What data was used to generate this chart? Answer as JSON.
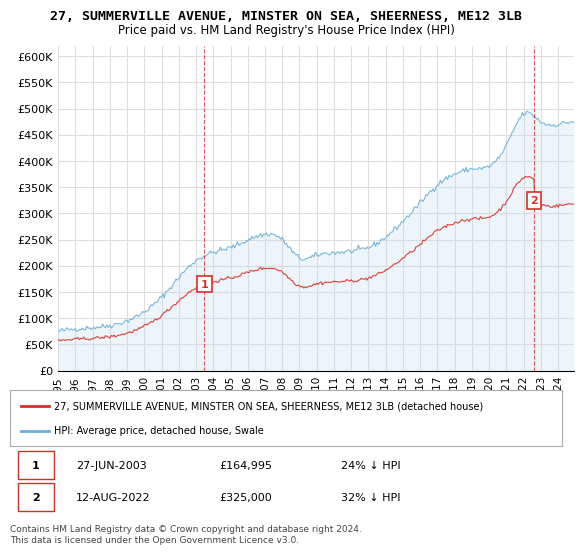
{
  "title_line1": "27, SUMMERVILLE AVENUE, MINSTER ON SEA, SHEERNESS, ME12 3LB",
  "title_line2": "Price paid vs. HM Land Registry's House Price Index (HPI)",
  "xlabel": "",
  "ylabel": "",
  "ylim": [
    0,
    620000
  ],
  "yticks": [
    0,
    50000,
    100000,
    150000,
    200000,
    250000,
    300000,
    350000,
    400000,
    450000,
    500000,
    550000,
    600000
  ],
  "ytick_labels": [
    "£0",
    "£50K",
    "£100K",
    "£150K",
    "£200K",
    "£250K",
    "£300K",
    "£350K",
    "£400K",
    "£450K",
    "£500K",
    "£550K",
    "£600K"
  ],
  "hpi_color": "#6baed6",
  "hpi_fill_color": "#c6dbef",
  "price_color": "#d73027",
  "sale1_date": "2003-06-27",
  "sale1_price": 164995,
  "sale1_label": "1",
  "sale2_date": "2022-08-12",
  "sale2_price": 325000,
  "sale2_label": "2",
  "legend_property": "27, SUMMERVILLE AVENUE, MINSTER ON SEA, SHEERNESS, ME12 3LB (detached house)",
  "legend_hpi": "HPI: Average price, detached house, Swale",
  "table_row1": [
    "1",
    "27-JUN-2003",
    "£164,995",
    "24% ↓ HPI"
  ],
  "table_row2": [
    "2",
    "12-AUG-2022",
    "£325,000",
    "32% ↓ HPI"
  ],
  "footnote": "Contains HM Land Registry data © Crown copyright and database right 2024.\nThis data is licensed under the Open Government Licence v3.0.",
  "background_color": "#ffffff",
  "grid_color": "#dddddd"
}
